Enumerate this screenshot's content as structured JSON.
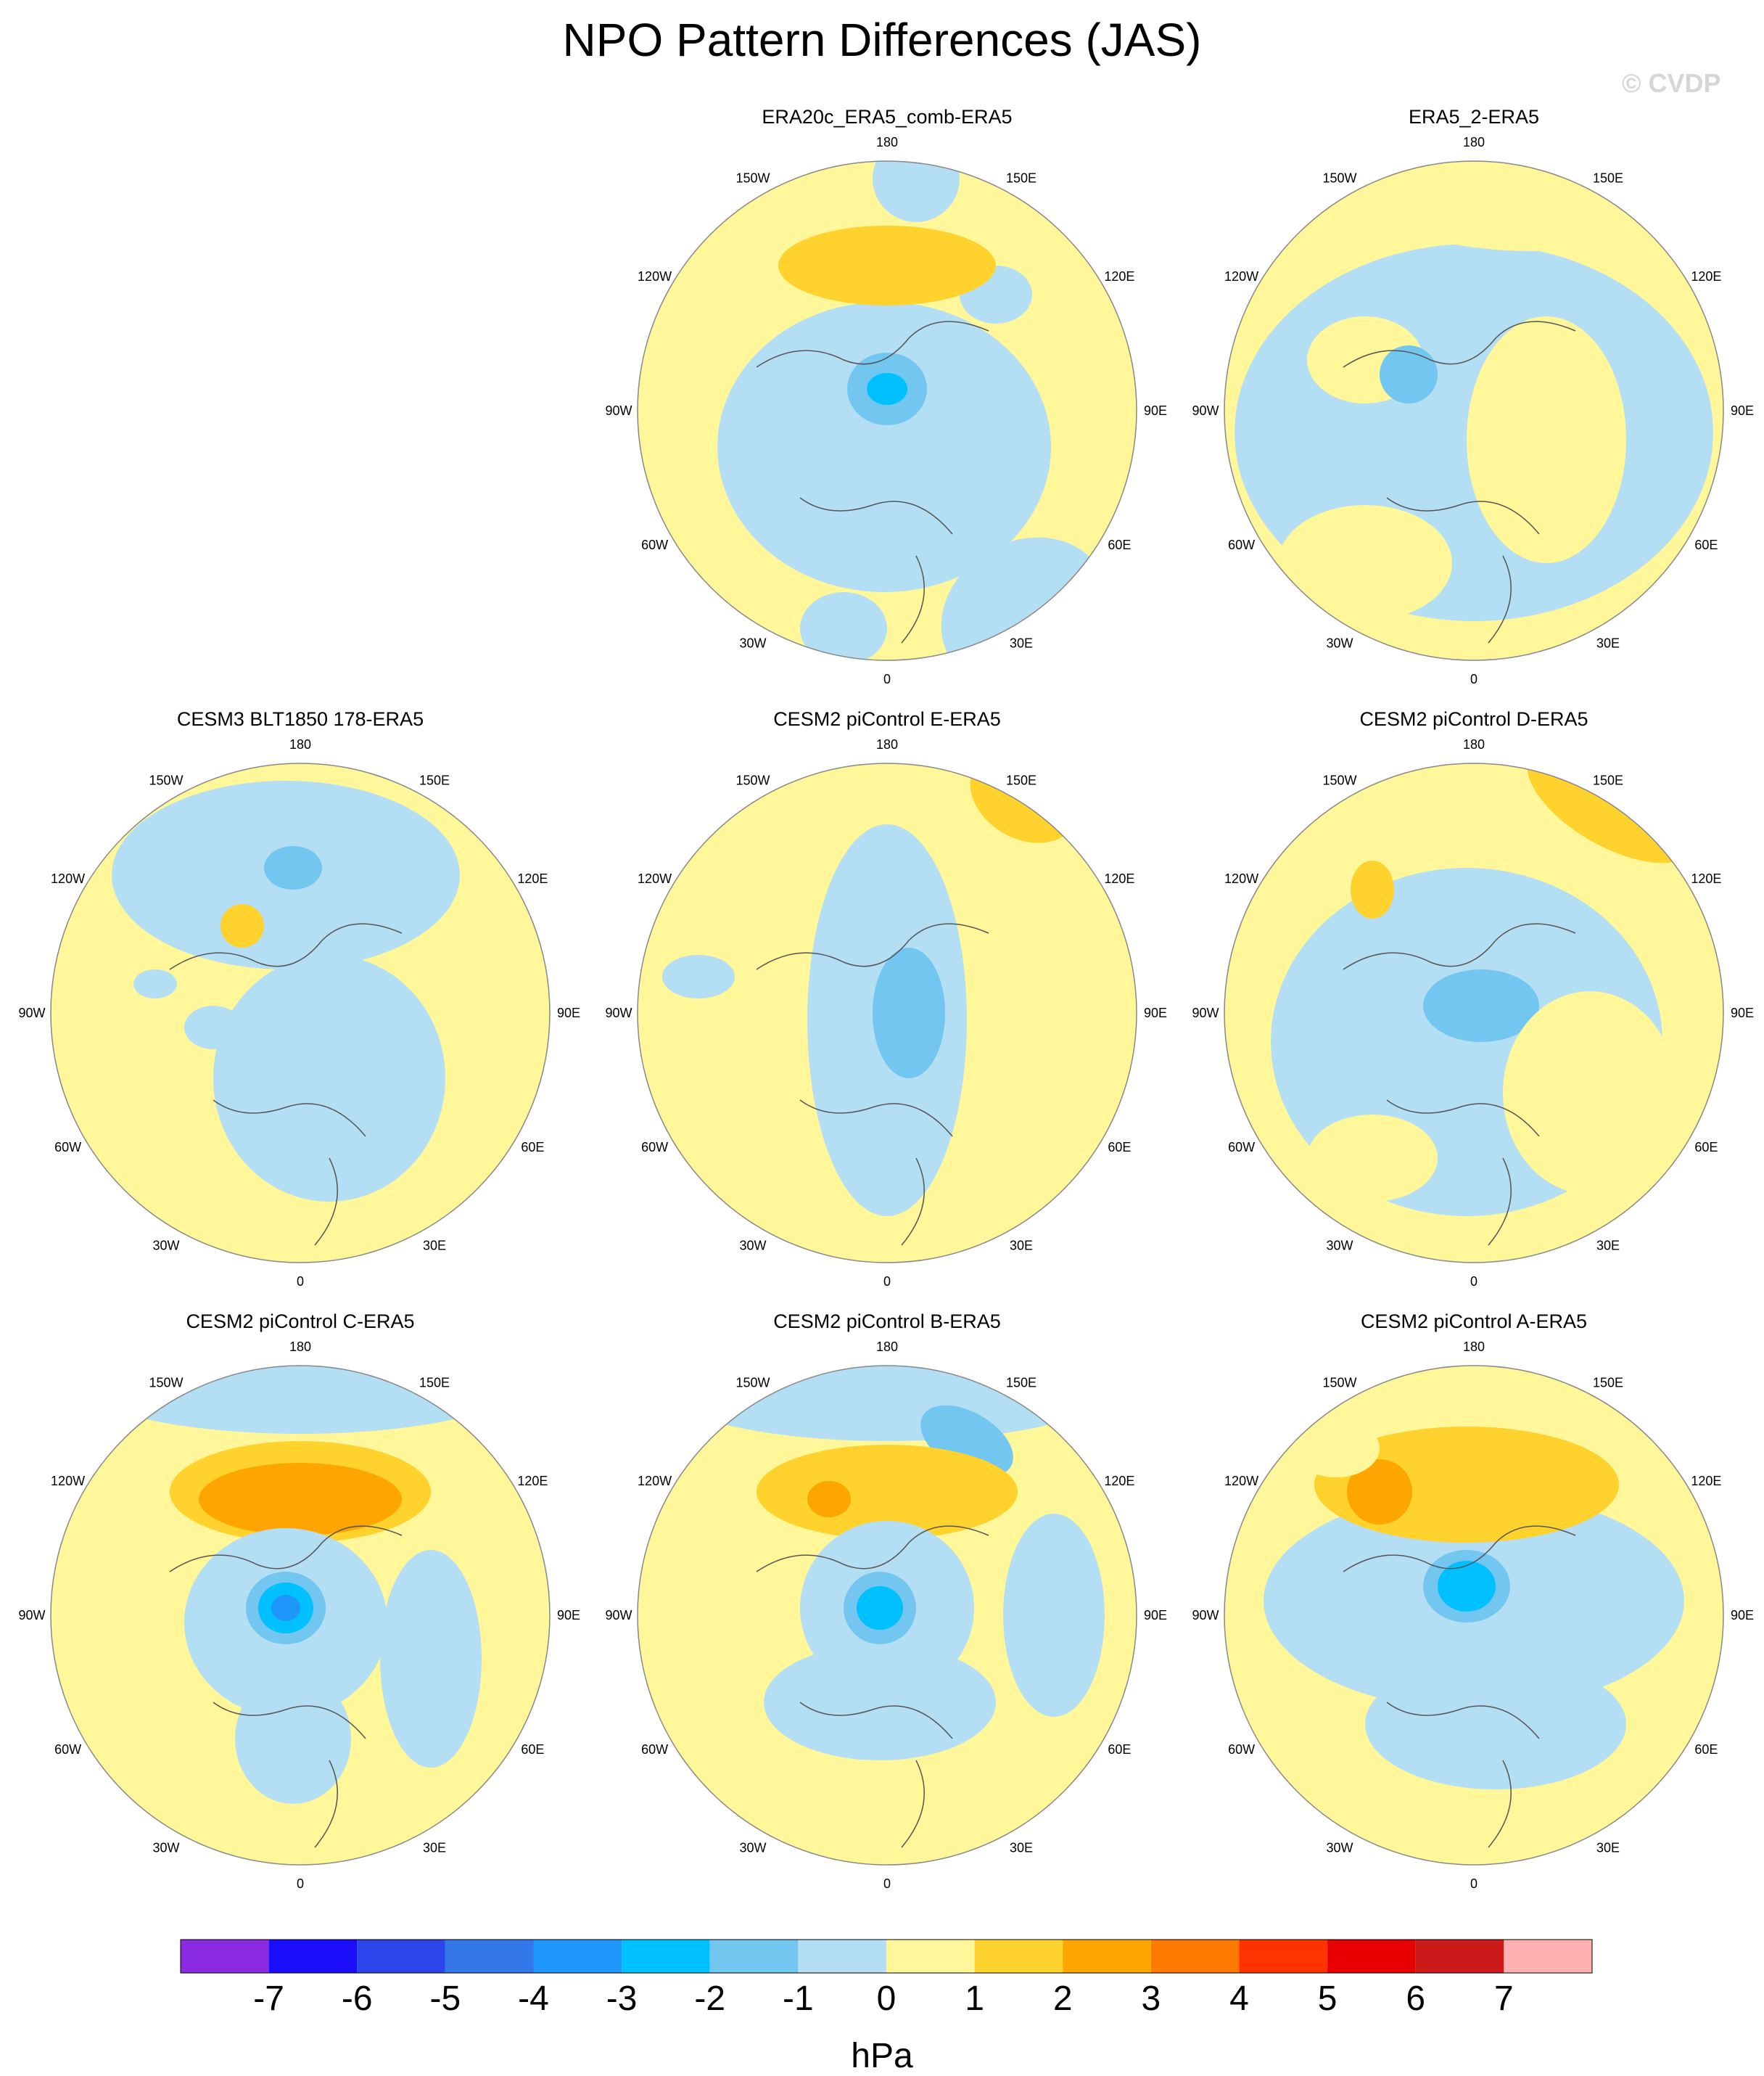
{
  "title": "NPO Pattern Differences (JAS)",
  "watermark": "© CVDP",
  "lon_labels": {
    "top": "180",
    "bottom": "0",
    "left": "90W",
    "right": "90E",
    "upper_left": "150W",
    "upper_right": "150E",
    "mid_upper_left": "120W",
    "mid_upper_right": "120E",
    "mid_lower_left": "60W",
    "mid_lower_right": "60E",
    "lower_left": "30W",
    "lower_right": "30E"
  },
  "panels": [
    {
      "title": "ERA20c_ERA5_comb-ERA5",
      "row": 0,
      "col": 1
    },
    {
      "title": "ERA5_2-ERA5",
      "row": 0,
      "col": 2
    },
    {
      "title": "CESM3 BLT1850 178-ERA5",
      "row": 1,
      "col": 0
    },
    {
      "title": "CESM2 piControl E-ERA5",
      "row": 1,
      "col": 1
    },
    {
      "title": "CESM2 piControl D-ERA5",
      "row": 1,
      "col": 2
    },
    {
      "title": "CESM2 piControl C-ERA5",
      "row": 2,
      "col": 0
    },
    {
      "title": "CESM2 piControl B-ERA5",
      "row": 2,
      "col": 1
    },
    {
      "title": "CESM2 piControl A-ERA5",
      "row": 2,
      "col": 2
    }
  ],
  "colorbar": {
    "colors": [
      "#8a2be2",
      "#1a0dfa",
      "#2a45ea",
      "#3477e8",
      "#1e96f9",
      "#00c0ff",
      "#72c6f0",
      "#b4def4",
      "#fff799",
      "#ffd22d",
      "#ffa500",
      "#ff7a00",
      "#ff3300",
      "#e60000",
      "#cc1a1a",
      "#ffb0b0"
    ],
    "labels": [
      "-7",
      "-6",
      "-5",
      "-4",
      "-3",
      "-2",
      "-1",
      "0",
      "1",
      "2",
      "3",
      "4",
      "5",
      "6",
      "7"
    ],
    "unit": "hPa"
  },
  "legend": {
    "zero_color": "#fff799",
    "neg1_color": "#b4def4",
    "neg2_color": "#72c6f0",
    "neg3_color": "#00c0ff",
    "neg4_color": "#1e96f9",
    "pos1_color": "#ffd22d",
    "pos2_color": "#ffa500",
    "coast_color": "#555555"
  }
}
